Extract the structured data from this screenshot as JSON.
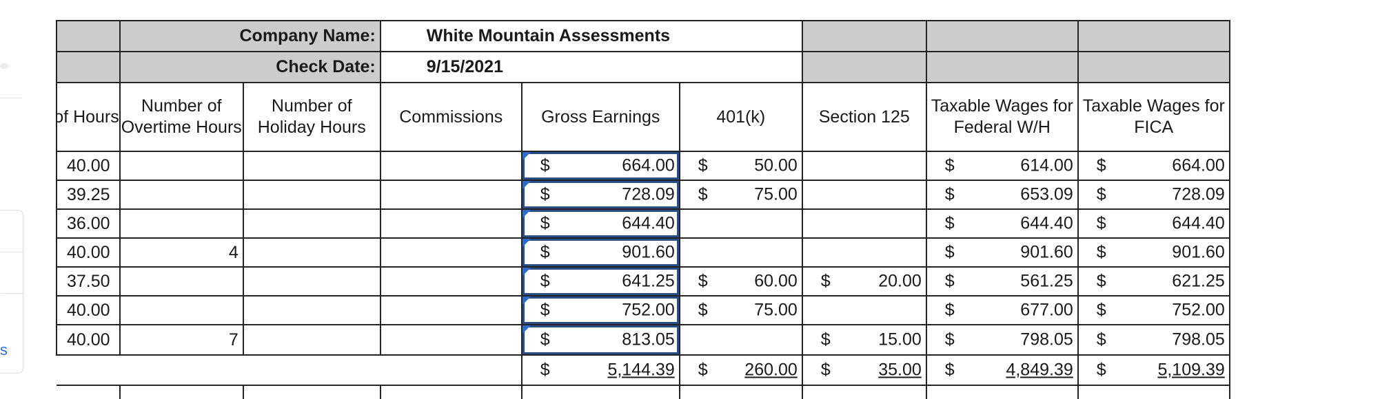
{
  "sheet": {
    "company_label": "Company Name:",
    "company_value": "White Mountain Assessments",
    "date_label": "Check Date:",
    "date_value": "9/15/2021",
    "headers": {
      "regular_hours": "r of Hours",
      "overtime": "Number of Overtime Hours",
      "holiday": "Number of Holiday Hours",
      "commissions": "Commissions",
      "gross": "Gross Earnings",
      "k401": "401(k)",
      "sec125": "Section 125",
      "fed": "Taxable Wages for Federal W/H",
      "fica": "Taxable Wages for FICA"
    },
    "currency": "$",
    "rows": [
      {
        "hours": "40.00",
        "ot": "",
        "gross": "664.00",
        "k401": "50.00",
        "s125": "",
        "fed": "614.00",
        "fica": "664.00"
      },
      {
        "hours": "39.25",
        "ot": "",
        "gross": "728.09",
        "k401": "75.00",
        "s125": "",
        "fed": "653.09",
        "fica": "728.09"
      },
      {
        "hours": "36.00",
        "ot": "",
        "gross": "644.40",
        "k401": "",
        "s125": "",
        "fed": "644.40",
        "fica": "644.40"
      },
      {
        "hours": "40.00",
        "ot": "4",
        "gross": "901.60",
        "k401": "",
        "s125": "",
        "fed": "901.60",
        "fica": "901.60"
      },
      {
        "hours": "37.50",
        "ot": "",
        "gross": "641.25",
        "k401": "60.00",
        "s125": "20.00",
        "fed": "561.25",
        "fica": "621.25"
      },
      {
        "hours": "40.00",
        "ot": "",
        "gross": "752.00",
        "k401": "75.00",
        "s125": "",
        "fed": "677.00",
        "fica": "752.00"
      },
      {
        "hours": "40.00",
        "ot": "7",
        "gross": "813.05",
        "k401": "",
        "s125": "15.00",
        "fed": "798.05",
        "fica": "798.05"
      }
    ],
    "totals": {
      "gross": "5,144.39",
      "k401": "260.00",
      "s125": "35.00",
      "fed": "4,849.39",
      "fica": "5,109.39"
    }
  },
  "sidebar": {
    "link_text": "s"
  }
}
